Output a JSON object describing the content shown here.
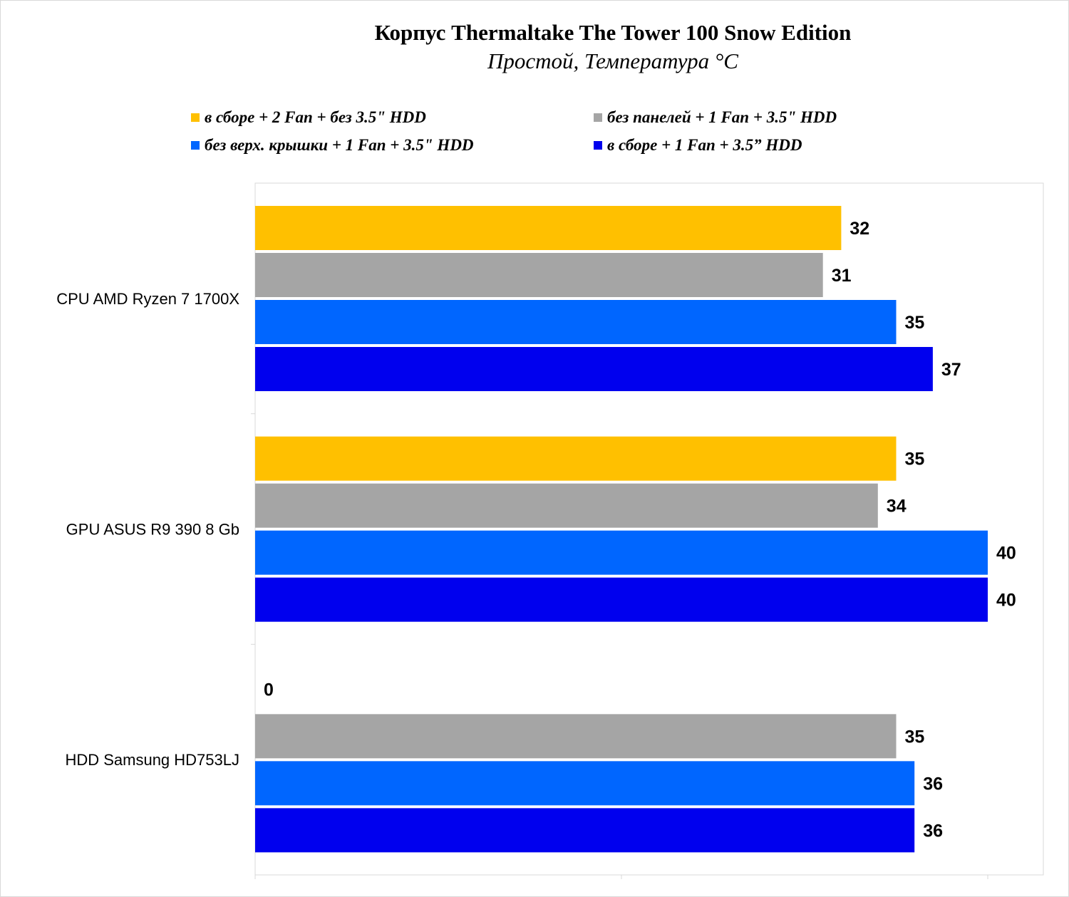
{
  "chart_data": {
    "type": "bar",
    "orientation": "horizontal",
    "title": "Корпус Thermaltake The Tower 100 Snow Edition",
    "subtitle": "Простой, Температура °C",
    "categories": [
      "CPU AMD Ryzen 7 1700X",
      "GPU ASUS R9 390 8 Gb",
      "HDD Samsung HD753LJ"
    ],
    "xlim": [
      0,
      40
    ],
    "grid": false,
    "legend_position": "top",
    "series": [
      {
        "name": "в сборе + 2 Fan + без 3.5\" HDD",
        "color": "#ffc000",
        "values": [
          32,
          35,
          0
        ],
        "labels": [
          "32",
          "35",
          "0"
        ]
      },
      {
        "name": "без панелей + 1 Fan + 3.5\" HDD",
        "color": "#a5a5a5",
        "values": [
          31,
          34,
          35
        ],
        "labels": [
          "31",
          "34",
          "35"
        ]
      },
      {
        "name": "без верх. крышки + 1 Fan + 3.5\" HDD",
        "color": "#0066ff",
        "values": [
          35,
          40,
          36
        ],
        "labels": [
          "35",
          "40",
          "36"
        ]
      },
      {
        "name": "в сборе + 1 Fan + 3.5” HDD",
        "color": "#0000ee",
        "values": [
          37,
          40,
          36
        ],
        "labels": [
          "37",
          "40",
          "36"
        ]
      }
    ]
  }
}
